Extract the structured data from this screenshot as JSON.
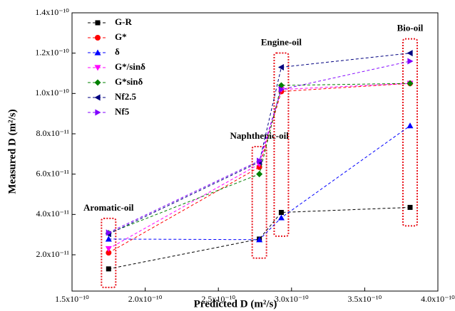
{
  "chart_data": {
    "type": "line",
    "xlabel": "Predicted D (m²/s)",
    "ylabel": "Measured D (m²/s)",
    "x": [
      1.75e-10,
      2.78e-10,
      2.93e-10,
      3.81e-10
    ],
    "annotations": [
      "Aromatic-oil",
      "Naphthenic-oil",
      "Engine-oil",
      "Bio-oil"
    ],
    "annotation_color": "#e8141c",
    "series": [
      {
        "name": "G-R",
        "color": "#000000",
        "marker": "square",
        "values": [
          1.3e-11,
          2.78e-11,
          4.1e-11,
          4.35e-11
        ]
      },
      {
        "name": "G*",
        "color": "#ff0000",
        "marker": "circle",
        "values": [
          2.1e-11,
          6.35e-11,
          1.01e-10,
          1.05e-10
        ]
      },
      {
        "name": "δ",
        "color": "#0000ff",
        "marker": "triangle-up",
        "values": [
          2.78e-11,
          2.75e-11,
          3.84e-11,
          8.4e-11
        ]
      },
      {
        "name": "G*/sinδ",
        "color": "#ff00ff",
        "marker": "triangle-down",
        "values": [
          2.3e-11,
          6.5e-11,
          1.02e-10,
          1.05e-10
        ]
      },
      {
        "name": "G*sinδ",
        "color": "#008000",
        "marker": "diamond",
        "values": [
          3.07e-11,
          6e-11,
          1.04e-10,
          1.05e-10
        ]
      },
      {
        "name": "Nf2.5",
        "color": "#000080",
        "marker": "triangle-left",
        "values": [
          3.03e-11,
          6.6e-11,
          1.13e-10,
          1.2e-10
        ]
      },
      {
        "name": "Nf5",
        "color": "#8000ff",
        "marker": "triangle-right",
        "values": [
          3.1e-11,
          6.66e-11,
          1.02e-10,
          1.16e-10
        ]
      }
    ],
    "xlim": [
      1.5e-10,
      4e-10
    ],
    "xticks": [
      {
        "value": 1.5e-10,
        "label": "1.5x10⁻¹⁰"
      },
      {
        "value": 2e-10,
        "label": "2.0x10⁻¹⁰"
      },
      {
        "value": 2.5e-10,
        "label": "2.5x10⁻¹⁰"
      },
      {
        "value": 3e-10,
        "label": "3.0x10⁻¹⁰"
      },
      {
        "value": 3.5e-10,
        "label": "3.5x10⁻¹⁰"
      },
      {
        "value": 4e-10,
        "label": "4.0x10⁻¹⁰"
      }
    ],
    "ylim": [
      2e-12,
      1.4e-10
    ],
    "yticks": [
      {
        "value": 2e-11,
        "label": "2.0x10⁻¹¹"
      },
      {
        "value": 4e-11,
        "label": "4.0x10⁻¹¹"
      },
      {
        "value": 6e-11,
        "label": "6.0x10⁻¹¹"
      },
      {
        "value": 8e-11,
        "label": "8.0x10⁻¹¹"
      },
      {
        "value": 1e-10,
        "label": "1.0x10⁻¹⁰"
      },
      {
        "value": 1.2e-10,
        "label": "1.2x10⁻¹⁰"
      },
      {
        "value": 1.4e-10,
        "label": "1.4x10⁻¹⁰"
      }
    ],
    "legend": "upper left",
    "grid": false
  }
}
